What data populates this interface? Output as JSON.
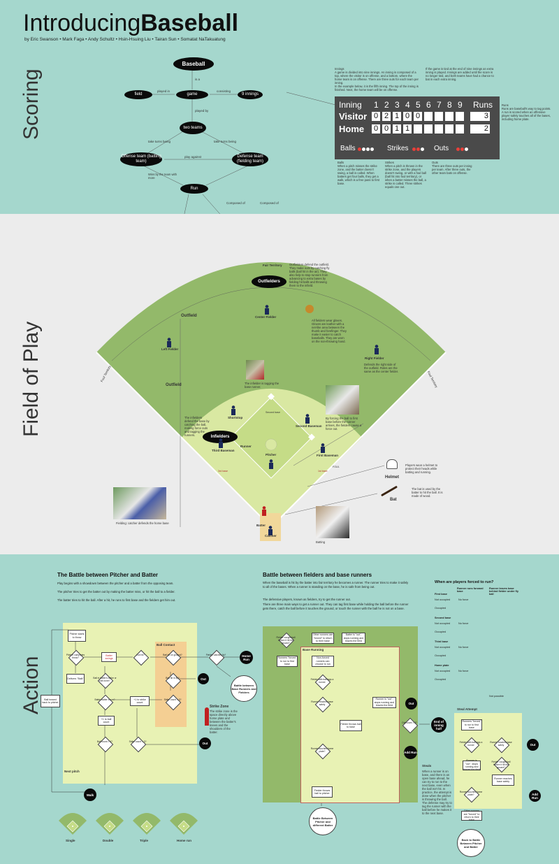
{
  "title": {
    "light": "Introducing",
    "bold": "Baseball"
  },
  "authors": "by Eric Swanson   •   Mark Faga   •   Andy Schultz   •   Hsin-Hsuing Liu   •   Tairan Sun   •   Somatat NaTakuatung",
  "sections": {
    "scoring": "Scoring",
    "field": "Field of Play",
    "action": "Action"
  },
  "concept_map": {
    "baseball": "Baseball",
    "is_a": "is a",
    "field": "field",
    "played_in": "played in",
    "game": "game",
    "consisting": "consisting",
    "innings": "9 innings",
    "played_by": "played by",
    "two_teams": "two teams",
    "take_turns_1": "take turns being",
    "take_turns_2": "take turns being",
    "offense": "Offense team (batting team)",
    "play_against": "play against",
    "defense": "Defense team (fielding team)",
    "wins": "Wins by the team with more",
    "run": "Run",
    "composed_1": "Composed of",
    "composed_2": "Composed of"
  },
  "scoring_notes": {
    "innings": "Innings\nA game is divided into nine innings. An inning is composed of a top, where the visitor is on offense, and a bottom, where the home team is on offense. There are three outs for each team per inning.\nIn the example below, it is the fifth inning. The top of the inning is finished. Next, the home team will be on offense.",
    "extra": "If the game is tied at the end of nine innings an extra inning is played. Innings are added until the score is no longer tied, and both teams have had a chance to bat in each extra inning.",
    "runs": "Runs\nRuns are baseball's way to tag points. A run is scored when an offensive player safely touches all of the bases, including home plate.",
    "balls": "Balls\nWhen a pitch misses the strike zone, and the batter doesn't swing, a ball is called. When batters get four balls, they get a walk, which is a free pass to first base.",
    "strikes": "Strikes\nWhen a pitch is thrown in the strike zone, and the players doesn't swing, or with a foul ball (ball hit into foul territory), or when a batter misses the ball, a strike is called. Three strikes equals one out.",
    "outs": "Outs\nThere are three outs per inning per team. After three outs, the other team bats on offense."
  },
  "scoreboard": {
    "inning_label": "Inning",
    "innings": [
      "1",
      "2",
      "3",
      "4",
      "5",
      "6",
      "7",
      "8",
      "9"
    ],
    "runs_label": "Runs",
    "visitor": {
      "name": "Visitor",
      "scores": [
        "0",
        "2",
        "1",
        "0",
        "0",
        "",
        "",
        "",
        ""
      ],
      "runs": "3"
    },
    "home": {
      "name": "Home",
      "scores": [
        "0",
        "0",
        "1",
        "1",
        "",
        "",
        "",
        "",
        ""
      ],
      "runs": "2"
    },
    "balls_label": "Balls",
    "strikes_label": "Strikes",
    "outs_label": "Outs",
    "balls": 1,
    "strikes": 2,
    "outs": 2,
    "colors": {
      "on": "#e8403a",
      "off": "#ffffff",
      "board": "#4a4a4a"
    }
  },
  "field": {
    "fair_territory": "Fair Territory",
    "outfielders": "Outfielders",
    "outfielders_note": "Outfielders defend the outfield. They make outs by catching fly balls (ball hit in the air). They also help to stop runners from advancing to extra bases by fielding hit balls and throwing them to the infield.",
    "outfield_1": "Outfield",
    "outfield_2": "Outfield",
    "center_fielder": "Center Fielder",
    "glove_note": "All fielders wear gloves. Gloves are leather with a net-like area between the thumb and forefinger. They make it easier to catch baseballs. They are worn on the non-throwing hand.",
    "left_fielder": "Left Fielder",
    "right_fielder": "Right Fielder",
    "right_fielder_note": "Defends the right side of the outfield. Roles are the same as the center fielder.",
    "foul_line_left": "Foul Territory",
    "foul_line_right": "Foul Territory",
    "tag_caption": "The infielder is tagging the base runner.",
    "force_caption": "By forcing the ball to first base before the runner arrives, the fielders cause a force out.",
    "infielders": "Infielders",
    "infielders_note": "The infielders defend the base by catching the ball, making force outs and tagging the runners.",
    "shortstop": "Shortstop",
    "second_baseman": "Second Baseman",
    "second_base": "Second base",
    "third_baseman": "Third Baseman",
    "first_baseman": "First Baseman",
    "pitcher": "Pitcher",
    "batter": "Batter",
    "catcher": "Catcher",
    "runner": "Runner",
    "third_base": "3rd base",
    "first_base": "1st base",
    "helmet": "Helmet",
    "helmet_note": "Players wear a helmet to protect their heads while batting and running.",
    "bat": "Bat",
    "bat_note": "The bat is used by the batter to hit the ball. It is made of wood.",
    "catcher_caption": "Fielding: catcher defends the home base",
    "batting_caption": "Batting",
    "foul": "FOUL"
  },
  "battle_pitcher": {
    "title": "The Battle between Pitcher and Batter",
    "p1": "Play begins with a showdown between the pitcher and a batter from the opposing team.",
    "p2": "The pitcher tries to get the batter out by making the batter miss, or hit the ball to a fielder.",
    "p3": "The batter tries to hit the ball.  After a hit, he runs to first base and the fielders get him out.",
    "ball_tossed": "Ball tossed back to pitcher",
    "pitcher_throw": "Pitcher starts to throw",
    "complete": "Pitcher completes throw?",
    "delivers": "Delivers \"Balk\"",
    "swing": "Batter swings",
    "ball_strike": "Ball in batter's strike or ball zone?",
    "got_hit": "Got hit?",
    "ball_contact": "Ball Contact",
    "hit_ground": "Ball hit on ground?",
    "hit_fly": "Ball hit in fly?",
    "catch": "Fielder catches fly?",
    "out": "Out",
    "strike_count": "Strike count = 3?",
    "add_strike": "+1 to strike count",
    "batter_move": "Batter batter move?",
    "add_ball": "+1 to ball count",
    "ball_count": "Ball count = 4?",
    "strike_count2": "Strike count = 3?",
    "walk": "Walk",
    "next_pitch": "Next pitch",
    "home_run": "Home Run",
    "battle_link": "Battle between Base Runners and Fielders",
    "strike_zone_title": "Strike Zone",
    "strike_zone_note": "The strike zone is the space directly above home plate and between the batter's knees and the shoulders of the batter.",
    "yes": "Yes",
    "no": "No",
    "hits": [
      "Single",
      "Double",
      "Triple",
      "Home run"
    ]
  },
  "battle_runners": {
    "title": "Battle between fielders and base runners",
    "p1": "When the baseball is hit by the batter into fair territory he becomes a runner. The runner tries to make it safely to all of the bases. When a runner is standing on the base, he is safe from being out.",
    "p2": "The defensive players, known as fielders, try to get the runner out.",
    "p3": "There are three main ways to get a runner out. They can tag first base while holding the ball before the runner gets there, catch the ball before it touches the ground, or touch the runner with the ball he is not on a base.",
    "fielder_caught": "Fielder caught ball before it hit the ground?",
    "other_runners": "Other runners are \"forced\" to return to their base",
    "batter_out": "Batter is \"out\", stops running and leaves the field",
    "base_running": "Base Running",
    "runners_forced": "Runners \"forced\" to run to first base",
    "non_forced": "Non-forced runners can choose to run",
    "fielder_ball": "Fielder with ball tags a runner",
    "runner_out": "Runner is \"out\", stops running and leaves the field",
    "runner_safe": "Runner reaches base safely",
    "fielder_throws": "Fielder throws ball to base",
    "add_run": "Add Run",
    "out": "Out",
    "out_count": "Out count = 3?",
    "end_inning": "End of inning half",
    "fielder_home": "Fielder throws ball to pitcher",
    "runner_home": "Runner touches home plate?",
    "back_battle": "Battle Between Pitcher and different Batter",
    "steals_title": "Steals",
    "steals_note": "When a runner is on base, and there is an open base ahead, he can try to run to the next base, even when the ball isn't hit. In practice, the attempt is done when the pitcher is throwing the ball. The defense may try to tag the runner with the ball before he makes it to the next base.",
    "steal_attempt": "Steal Attempt",
    "back_battle_2": "Back to Battle Between Pitcher and Batter",
    "yes": "Yes",
    "no": "No"
  },
  "forced_table": {
    "title": "When are players forced to run?",
    "col1": "Runner runs forward base",
    "col2": "Runner leaves base behind fielder under fly ball",
    "rows": [
      {
        "base": "First base",
        "states": [
          "Not occupied",
          "Occupied"
        ]
      },
      {
        "base": "Second base",
        "states": [
          "Not occupied",
          "Occupied"
        ]
      },
      {
        "base": "Third base",
        "states": [
          "Not occupied",
          "Occupied"
        ]
      },
      {
        "base": "Home plate",
        "states": [
          "Not occupied",
          "Occupied"
        ]
      }
    ],
    "not_possible": "Not possible",
    "no_force": "No force"
  }
}
